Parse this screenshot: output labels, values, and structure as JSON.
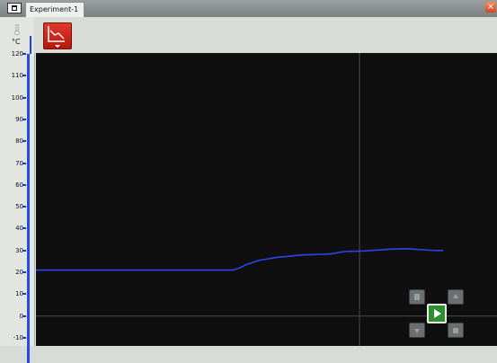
{
  "window": {
    "tab_label": "Experiment-1",
    "close_glyph": "×"
  },
  "axis": {
    "unit_label": "°C",
    "y_ticks": [
      "120",
      "110",
      "100",
      "90",
      "80",
      "70",
      "60",
      "50",
      "40",
      "30",
      "20",
      "10",
      "0",
      "-10"
    ],
    "line_color": "#2a46e6"
  },
  "chart_data": {
    "type": "line",
    "x": [
      0,
      10,
      20,
      30,
      40,
      50,
      60,
      62,
      64,
      66,
      68,
      70,
      72,
      74,
      76,
      78,
      80,
      82,
      84,
      86,
      88,
      90,
      92,
      94,
      96,
      98,
      100,
      102,
      104,
      106,
      108,
      110,
      112,
      114,
      116,
      118,
      120,
      122,
      124
    ],
    "series": [
      {
        "values": [
          21,
          21,
          21,
          21,
          21,
          21,
          21,
          22,
          23.5,
          24.5,
          25.5,
          26,
          26.5,
          27,
          27.2,
          27.5,
          27.8,
          28,
          28.1,
          28.2,
          28.3,
          28.5,
          29,
          29.5,
          29.6,
          29.7,
          29.8,
          30,
          30.2,
          30.4,
          30.6,
          30.7,
          30.8,
          30.7,
          30.5,
          30.3,
          30.1,
          30,
          30
        ],
        "color": "#2a46e6"
      }
    ],
    "ylim": [
      -10,
      120
    ],
    "grid": true
  },
  "toolbar": {
    "graph_button_icon": "graph-icon"
  },
  "navigator": {
    "center_icon": "play-icon",
    "corner_icons": [
      "record-icon",
      "up-icon",
      "down-icon",
      "stop-icon"
    ]
  }
}
